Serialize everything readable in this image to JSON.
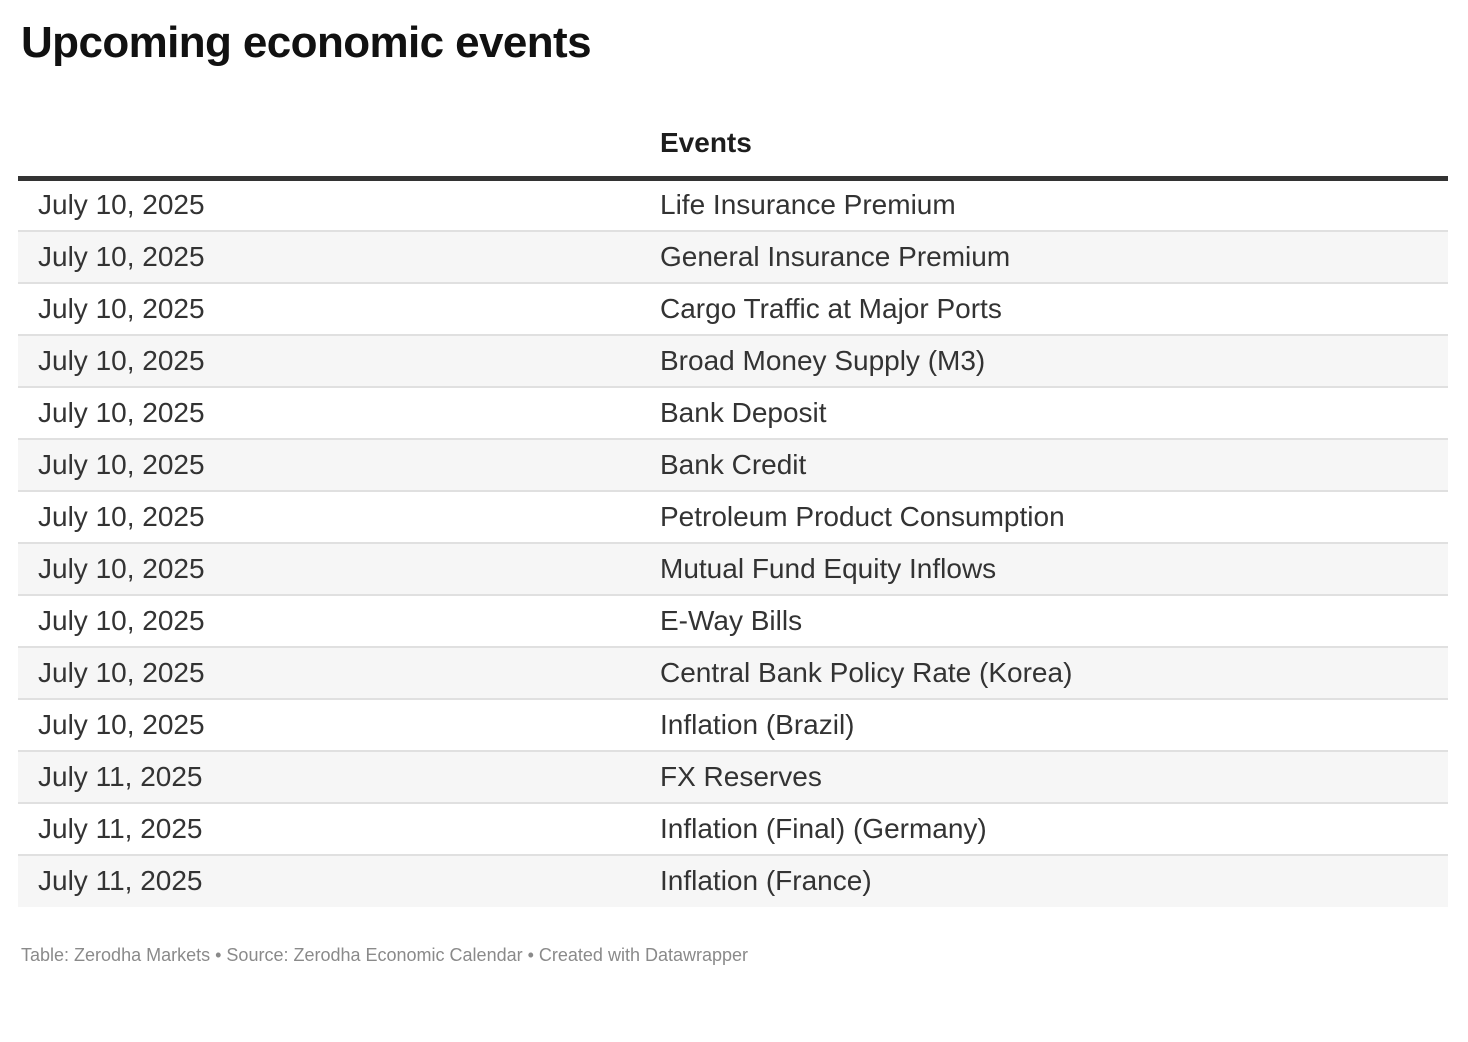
{
  "chart_data": {
    "type": "table",
    "title": "Upcoming economic events",
    "columns": [
      "",
      "Events"
    ],
    "rows": [
      {
        "date": "July 10, 2025",
        "event": "Life Insurance Premium"
      },
      {
        "date": "July 10, 2025",
        "event": "General Insurance Premium"
      },
      {
        "date": "July 10, 2025",
        "event": "Cargo Traffic at Major Ports"
      },
      {
        "date": "July 10, 2025",
        "event": "Broad Money Supply (M3)"
      },
      {
        "date": "July 10, 2025",
        "event": "Bank Deposit"
      },
      {
        "date": "July 10, 2025",
        "event": "Bank Credit"
      },
      {
        "date": "July 10, 2025",
        "event": "Petroleum Product Consumption"
      },
      {
        "date": "July 10, 2025",
        "event": "Mutual Fund Equity Inflows"
      },
      {
        "date": "July 10, 2025",
        "event": "E-Way Bills"
      },
      {
        "date": "July 10, 2025",
        "event": "Central Bank Policy Rate (Korea)"
      },
      {
        "date": "July 10, 2025",
        "event": "Inflation (Brazil)"
      },
      {
        "date": "July 11, 2025",
        "event": "FX Reserves"
      },
      {
        "date": "July 11, 2025",
        "event": "Inflation (Final) (Germany)"
      },
      {
        "date": "July 11, 2025",
        "event": "Inflation (France)"
      }
    ],
    "layout_hints": {
      "zebra_striping": true,
      "striped_rows": "even",
      "header_rule": true
    }
  },
  "footer": {
    "parts": [
      {
        "text": "Table: ",
        "link": false
      },
      {
        "text": "Zerodha Markets",
        "link": true
      },
      {
        "text": " • ",
        "link": false
      },
      {
        "text": "Source: ",
        "link": false
      },
      {
        "text": "Zerodha Economic Calendar",
        "link": true
      },
      {
        "text": " • ",
        "link": false
      },
      {
        "text": "Created with ",
        "link": false
      },
      {
        "text": "Datawrapper",
        "link": true
      }
    ]
  },
  "colors": {
    "background": "#ffffff",
    "title_text": "#111111",
    "header_text": "#1d1d1d",
    "body_text": "#333333",
    "header_rule": "#333333",
    "row_divider": "#e0e0e0",
    "row_stripe": "#f6f6f6",
    "footer_text": "#8a8a8a"
  }
}
